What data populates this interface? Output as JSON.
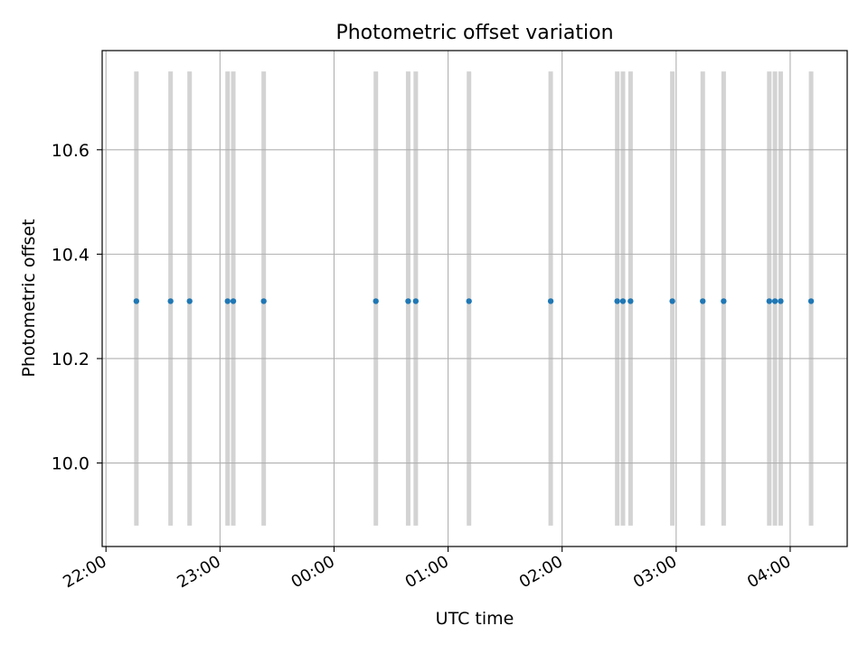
{
  "chart_data": {
    "type": "scatter",
    "title": "Photometric offset variation",
    "xlabel": "UTC time",
    "ylabel": "Photometric offset",
    "xlim": [
      "21:58",
      "04:30"
    ],
    "ylim": [
      9.84,
      10.79
    ],
    "grid": true,
    "x_ticks": [
      "22:00",
      "23:00",
      "00:00",
      "01:00",
      "02:00",
      "03:00",
      "04:00"
    ],
    "y_ticks": [
      10.0,
      10.2,
      10.4,
      10.6
    ],
    "band_range": [
      9.88,
      10.75
    ],
    "band_color": "#d3d3d3",
    "point_color": "#1f77b4",
    "grid_color": "#b0b0b0",
    "series": [
      {
        "x": [
          "22:16",
          "22:34",
          "22:44",
          "23:04",
          "23:07",
          "23:23",
          "00:22",
          "00:39",
          "00:43",
          "01:11",
          "01:54",
          "02:29",
          "02:32",
          "02:36",
          "02:58",
          "03:14",
          "03:25",
          "03:49",
          "03:52",
          "03:55",
          "04:11"
        ],
        "y": [
          10.31,
          10.31,
          10.31,
          10.31,
          10.31,
          10.31,
          10.31,
          10.31,
          10.31,
          10.31,
          10.31,
          10.31,
          10.31,
          10.31,
          10.31,
          10.31,
          10.31,
          10.31,
          10.31,
          10.31,
          10.31
        ]
      }
    ]
  }
}
